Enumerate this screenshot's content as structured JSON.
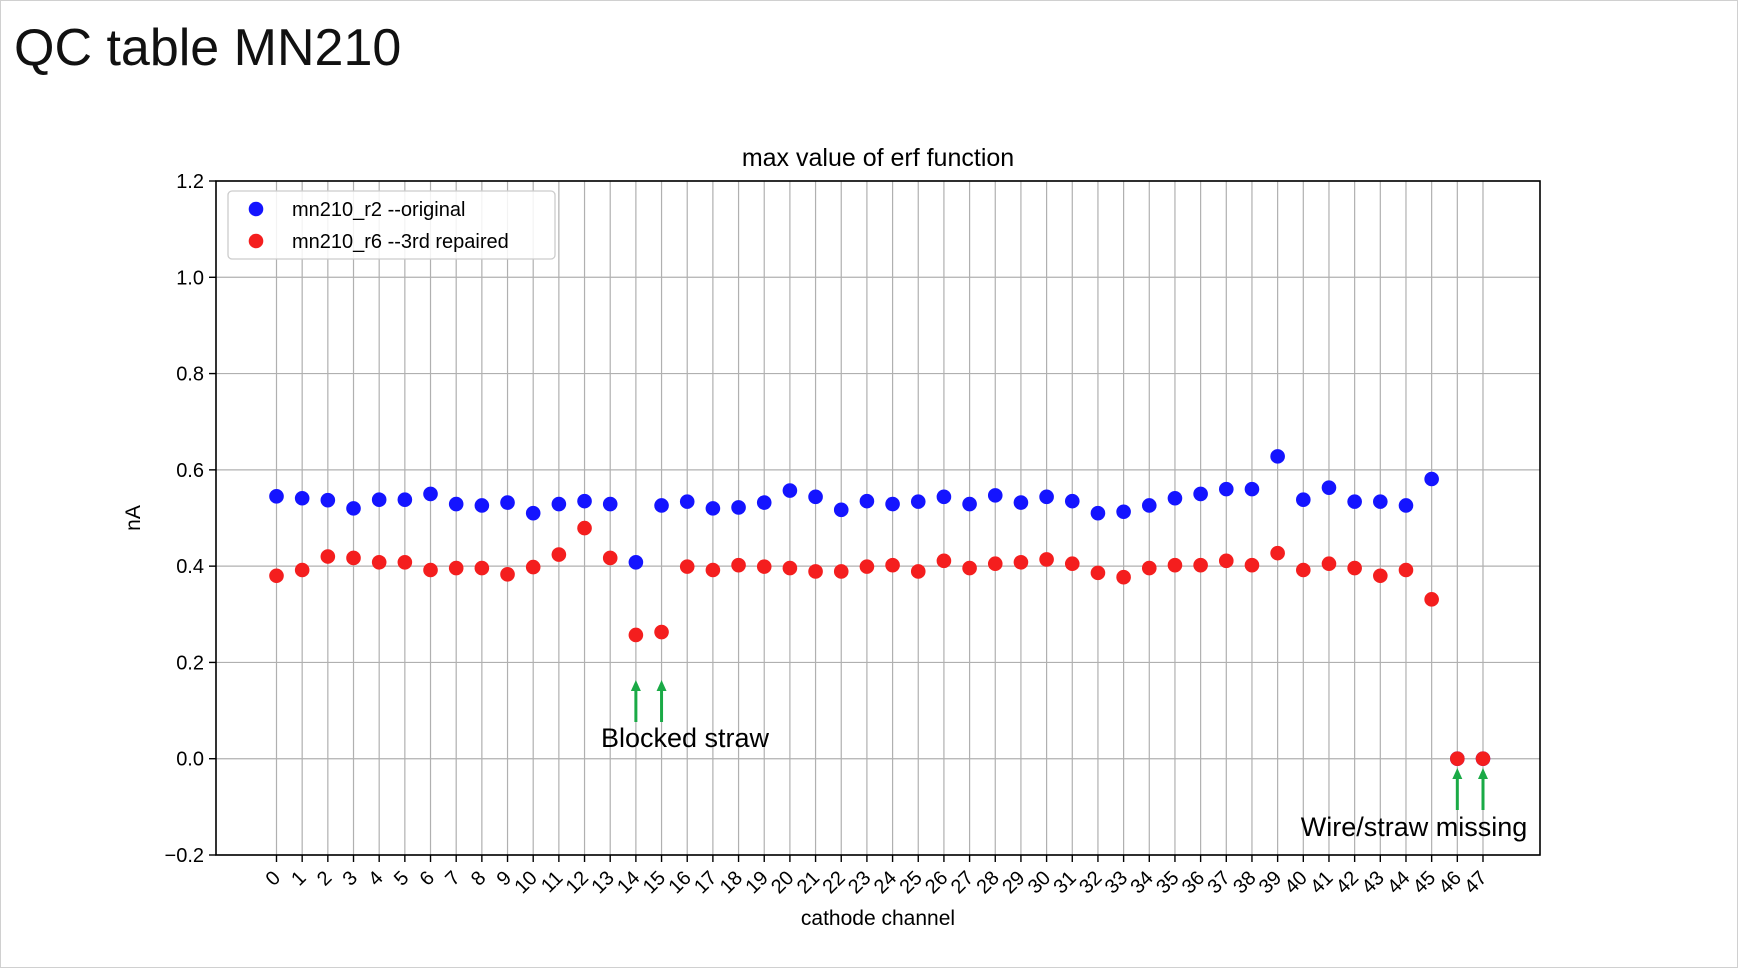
{
  "slide": {
    "title": "QC table MN210"
  },
  "chart_data": {
    "type": "scatter",
    "title": "max value of erf function",
    "xlabel": "cathode channel",
    "ylabel": "nA",
    "ylim": [
      -0.2,
      1.2
    ],
    "yticks": [
      -0.2,
      0.0,
      0.2,
      0.4,
      0.6,
      0.8,
      1.0,
      1.2
    ],
    "ytick_labels": [
      "−0.2",
      "0.0",
      "0.2",
      "0.4",
      "0.6",
      "0.8",
      "1.0",
      "1.2"
    ],
    "x": [
      0,
      1,
      2,
      3,
      4,
      5,
      6,
      7,
      8,
      9,
      10,
      11,
      12,
      13,
      14,
      15,
      16,
      17,
      18,
      19,
      20,
      21,
      22,
      23,
      24,
      25,
      26,
      27,
      28,
      29,
      30,
      31,
      32,
      33,
      34,
      35,
      36,
      37,
      38,
      39,
      40,
      41,
      42,
      43,
      44,
      45,
      46,
      47
    ],
    "xtick_labels": [
      "0",
      "1",
      "2",
      "3",
      "4",
      "5",
      "6",
      "7",
      "8",
      "9",
      "10",
      "11",
      "12",
      "13",
      "14",
      "15",
      "16",
      "17",
      "18",
      "19",
      "20",
      "21",
      "22",
      "23",
      "24",
      "25",
      "26",
      "27",
      "28",
      "29",
      "30",
      "31",
      "32",
      "33",
      "34",
      "35",
      "36",
      "37",
      "38",
      "39",
      "40",
      "41",
      "42",
      "43",
      "44",
      "45",
      "46",
      "47"
    ],
    "grid": true,
    "legend_position": "top-left",
    "series": [
      {
        "name": "mn210_r2 --original",
        "color": "#1414ff",
        "x": [
          0,
          1,
          2,
          3,
          4,
          5,
          6,
          7,
          8,
          9,
          10,
          11,
          12,
          13,
          14,
          15,
          16,
          17,
          18,
          19,
          20,
          21,
          22,
          23,
          24,
          25,
          26,
          27,
          28,
          29,
          30,
          31,
          32,
          33,
          34,
          35,
          36,
          37,
          38,
          39,
          40,
          41,
          42,
          43,
          44,
          45,
          46,
          47
        ],
        "y": [
          0.545,
          0.541,
          0.537,
          0.52,
          0.538,
          0.538,
          0.55,
          0.529,
          0.526,
          0.532,
          0.51,
          0.529,
          0.535,
          0.529,
          0.408,
          0.526,
          0.534,
          0.52,
          0.522,
          0.532,
          0.557,
          0.544,
          0.517,
          0.535,
          0.529,
          0.534,
          0.544,
          0.529,
          0.547,
          0.532,
          0.544,
          0.535,
          0.51,
          0.513,
          0.526,
          0.541,
          0.55,
          0.56,
          0.56,
          0.628,
          0.538,
          0.563,
          0.534,
          0.534,
          0.526,
          0.581,
          0.0,
          0.0
        ]
      },
      {
        "name": "mn210_r6 --3rd repaired",
        "color": "#f41e1e",
        "x": [
          0,
          1,
          2,
          3,
          4,
          5,
          6,
          7,
          8,
          9,
          10,
          11,
          12,
          13,
          14,
          15,
          16,
          17,
          18,
          19,
          20,
          21,
          22,
          23,
          24,
          25,
          26,
          27,
          28,
          29,
          30,
          31,
          32,
          33,
          34,
          35,
          36,
          37,
          38,
          39,
          40,
          41,
          42,
          43,
          44,
          45,
          46,
          47
        ],
        "y": [
          0.38,
          0.392,
          0.42,
          0.417,
          0.408,
          0.408,
          0.392,
          0.396,
          0.396,
          0.383,
          0.398,
          0.424,
          0.479,
          0.417,
          0.257,
          0.263,
          0.399,
          0.392,
          0.402,
          0.399,
          0.396,
          0.389,
          0.389,
          0.399,
          0.402,
          0.389,
          0.411,
          0.396,
          0.405,
          0.408,
          0.414,
          0.405,
          0.386,
          0.377,
          0.396,
          0.402,
          0.402,
          0.411,
          0.402,
          0.427,
          0.392,
          0.405,
          0.396,
          0.38,
          0.392,
          0.331,
          0.0,
          0.0
        ]
      }
    ],
    "annotations": [
      {
        "text": "Blocked straw",
        "arrows_at_x": [
          14,
          15
        ]
      },
      {
        "text": "Wire/straw missing",
        "arrows_at_x": [
          46,
          47
        ]
      }
    ],
    "arrow_color": "#1aaa46"
  }
}
